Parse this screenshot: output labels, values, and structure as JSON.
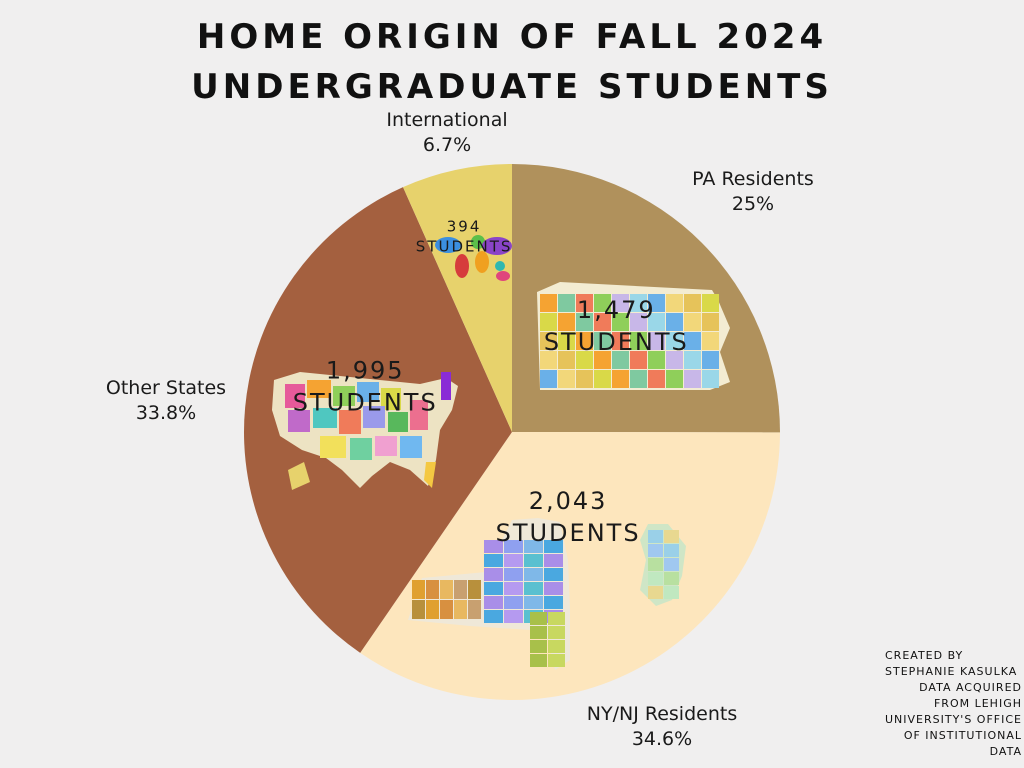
{
  "title_line1": "HOME ORIGIN OF FALL 2024",
  "title_line2": "UNDERGRADUATE STUDENTS",
  "chart_data": {
    "type": "pie",
    "title": "HOME ORIGIN OF FALL 2024 UNDERGRADUATE STUDENTS",
    "slices": [
      {
        "label": "PA Residents",
        "percent_label": "25%",
        "value": 1479,
        "count_line1": "1,479",
        "count_line2": "STUDENTS",
        "color": "#b0915c"
      },
      {
        "label": "NY/NJ Residents",
        "percent_label": "34.6%",
        "value": 2043,
        "count_line1": "2,043",
        "count_line2": "STUDENTS",
        "color": "#fde6bd"
      },
      {
        "label": "Other States",
        "percent_label": "33.8%",
        "value": 1995,
        "count_line1": "1,995",
        "count_line2": "STUDENTS",
        "color": "#a4603f"
      },
      {
        "label": "International",
        "percent_label": "6.7%",
        "value": 394,
        "count_line1": "394",
        "count_line2": "STUDENTS",
        "color": "#e7d26c"
      }
    ]
  },
  "maps": {
    "pa": "map of Pennsylvania counties",
    "nynj": "map of New York and New Jersey counties",
    "us": "map of the United States",
    "world": "world map"
  },
  "credit": {
    "line1": "CREATED BY",
    "line2": "STEPHANIE KASULKA",
    "line3": "DATA ACQUIRED",
    "line4": "FROM LEHIGH",
    "line5": "UNIVERSITY'S OFFICE",
    "line6": "OF INSTITUTIONAL",
    "line7": "DATA"
  }
}
